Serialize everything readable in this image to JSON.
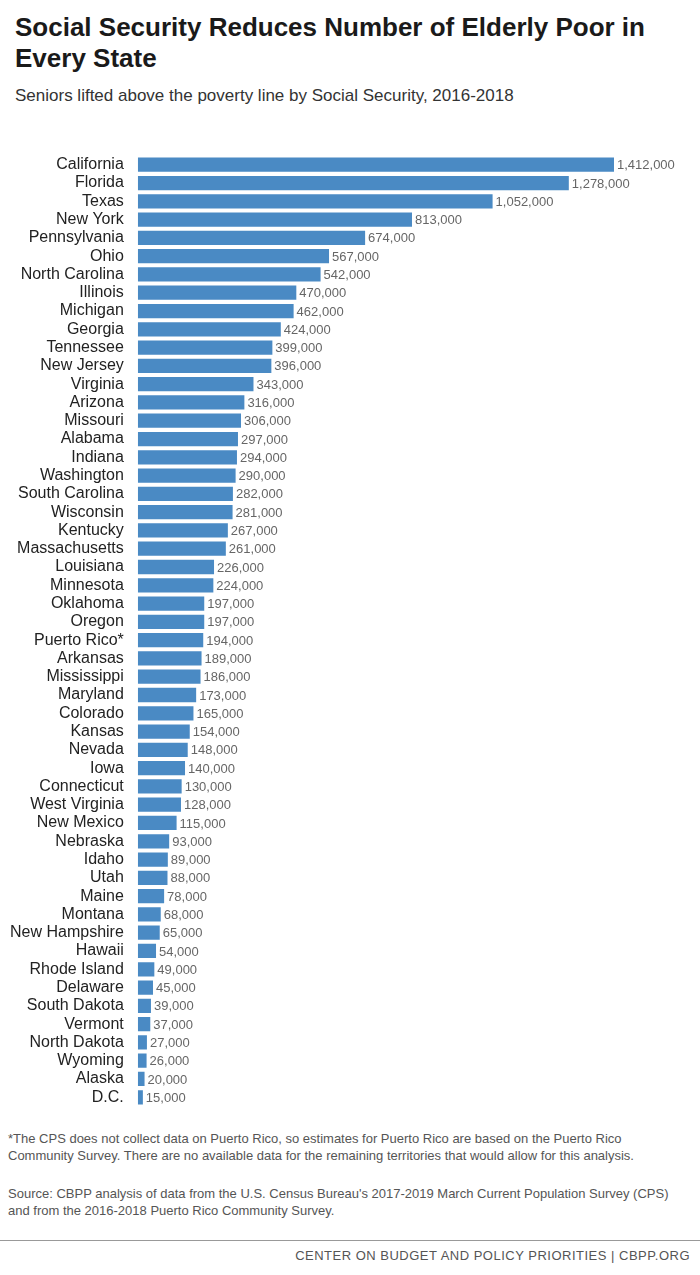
{
  "chart_data": {
    "type": "bar",
    "orientation": "horizontal",
    "title": "Social Security Reduces Number of Elderly Poor in Every State",
    "subtitle": "Seniors lifted above the poverty line by Social Security, 2016-2018",
    "footnote": "*The CPS does not collect data on Puerto Rico, so estimates for Puerto Rico are based on the Puerto Rico Community Survey. There are no available data for the remaining territories that would allow for this analysis.",
    "source": "Source: CBPP analysis of data from the U.S. Census Bureau's 2017-2019 March Current Population Survey (CPS) and from the 2016-2018 Puerto Rico Community Survey.",
    "credit": "CENTER ON BUDGET AND POLICY PRIORITIES | CBPP.ORG",
    "categories": [
      "California",
      "Florida",
      "Texas",
      "New York",
      "Pennsylvania",
      "Ohio",
      "North Carolina",
      "Illinois",
      "Michigan",
      "Georgia",
      "Tennessee",
      "New Jersey",
      "Virginia",
      "Arizona",
      "Missouri",
      "Alabama",
      "Indiana",
      "Washington",
      "South Carolina",
      "Wisconsin",
      "Kentucky",
      "Massachusetts",
      "Louisiana",
      "Minnesota",
      "Oklahoma",
      "Oregon",
      "Puerto Rico*",
      "Arkansas",
      "Mississippi",
      "Maryland",
      "Colorado",
      "Kansas",
      "Nevada",
      "Iowa",
      "Connecticut",
      "West Virginia",
      "New Mexico",
      "Nebraska",
      "Idaho",
      "Utah",
      "Maine",
      "Montana",
      "New Hampshire",
      "Hawaii",
      "Rhode Island",
      "Delaware",
      "South Dakota",
      "Vermont",
      "North Dakota",
      "Wyoming",
      "Alaska",
      "D.C."
    ],
    "values": [
      1412000,
      1278000,
      1052000,
      813000,
      674000,
      567000,
      542000,
      470000,
      462000,
      424000,
      399000,
      396000,
      343000,
      316000,
      306000,
      297000,
      294000,
      290000,
      282000,
      281000,
      267000,
      261000,
      226000,
      224000,
      197000,
      197000,
      194000,
      189000,
      186000,
      173000,
      165000,
      154000,
      148000,
      140000,
      130000,
      128000,
      115000,
      93000,
      89000,
      88000,
      78000,
      68000,
      65000,
      54000,
      49000,
      45000,
      39000,
      37000,
      27000,
      26000,
      20000,
      15000
    ],
    "value_labels": [
      "1,412,000",
      "1,278,000",
      "1,052,000",
      "813,000",
      "674,000",
      "567,000",
      "542,000",
      "470,000",
      "462,000",
      "424,000",
      "399,000",
      "396,000",
      "343,000",
      "316,000",
      "306,000",
      "297,000",
      "294,000",
      "290,000",
      "282,000",
      "281,000",
      "267,000",
      "261,000",
      "226,000",
      "224,000",
      "197,000",
      "197,000",
      "194,000",
      "189,000",
      "186,000",
      "173,000",
      "165,000",
      "154,000",
      "148,000",
      "140,000",
      "130,000",
      "128,000",
      "115,000",
      "93,000",
      "89,000",
      "88,000",
      "78,000",
      "68,000",
      "65,000",
      "54,000",
      "49,000",
      "45,000",
      "39,000",
      "37,000",
      "27,000",
      "26,000",
      "20,000",
      "15,000"
    ],
    "color": "#4a8ac4",
    "xlim": [
      0,
      1412000
    ],
    "grid": false,
    "legend": false,
    "data_labels": true,
    "tick_labels": "y"
  }
}
